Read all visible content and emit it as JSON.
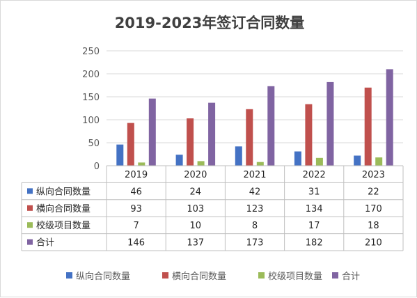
{
  "chart_data": {
    "type": "bar",
    "title": "2019-2023年签订合同数量",
    "xlabel": "",
    "ylabel": "",
    "categories": [
      "2019",
      "2020",
      "2021",
      "2022",
      "2023"
    ],
    "series": [
      {
        "name": "纵向合同数量",
        "color": "#4472C4",
        "values": [
          46,
          24,
          42,
          31,
          22
        ]
      },
      {
        "name": "横向合同数量",
        "color": "#C0504D",
        "values": [
          93,
          103,
          123,
          134,
          170
        ]
      },
      {
        "name": "校级项目数量",
        "color": "#9BBB59",
        "values": [
          7,
          10,
          8,
          17,
          18
        ]
      },
      {
        "name": "合计",
        "color": "#8064A2",
        "values": [
          146,
          137,
          173,
          182,
          210
        ]
      }
    ],
    "ylim": [
      0,
      250
    ],
    "yticks": [
      0,
      50,
      100,
      150,
      200,
      250
    ],
    "grid": true,
    "legend": "bottom",
    "data_table": true
  }
}
